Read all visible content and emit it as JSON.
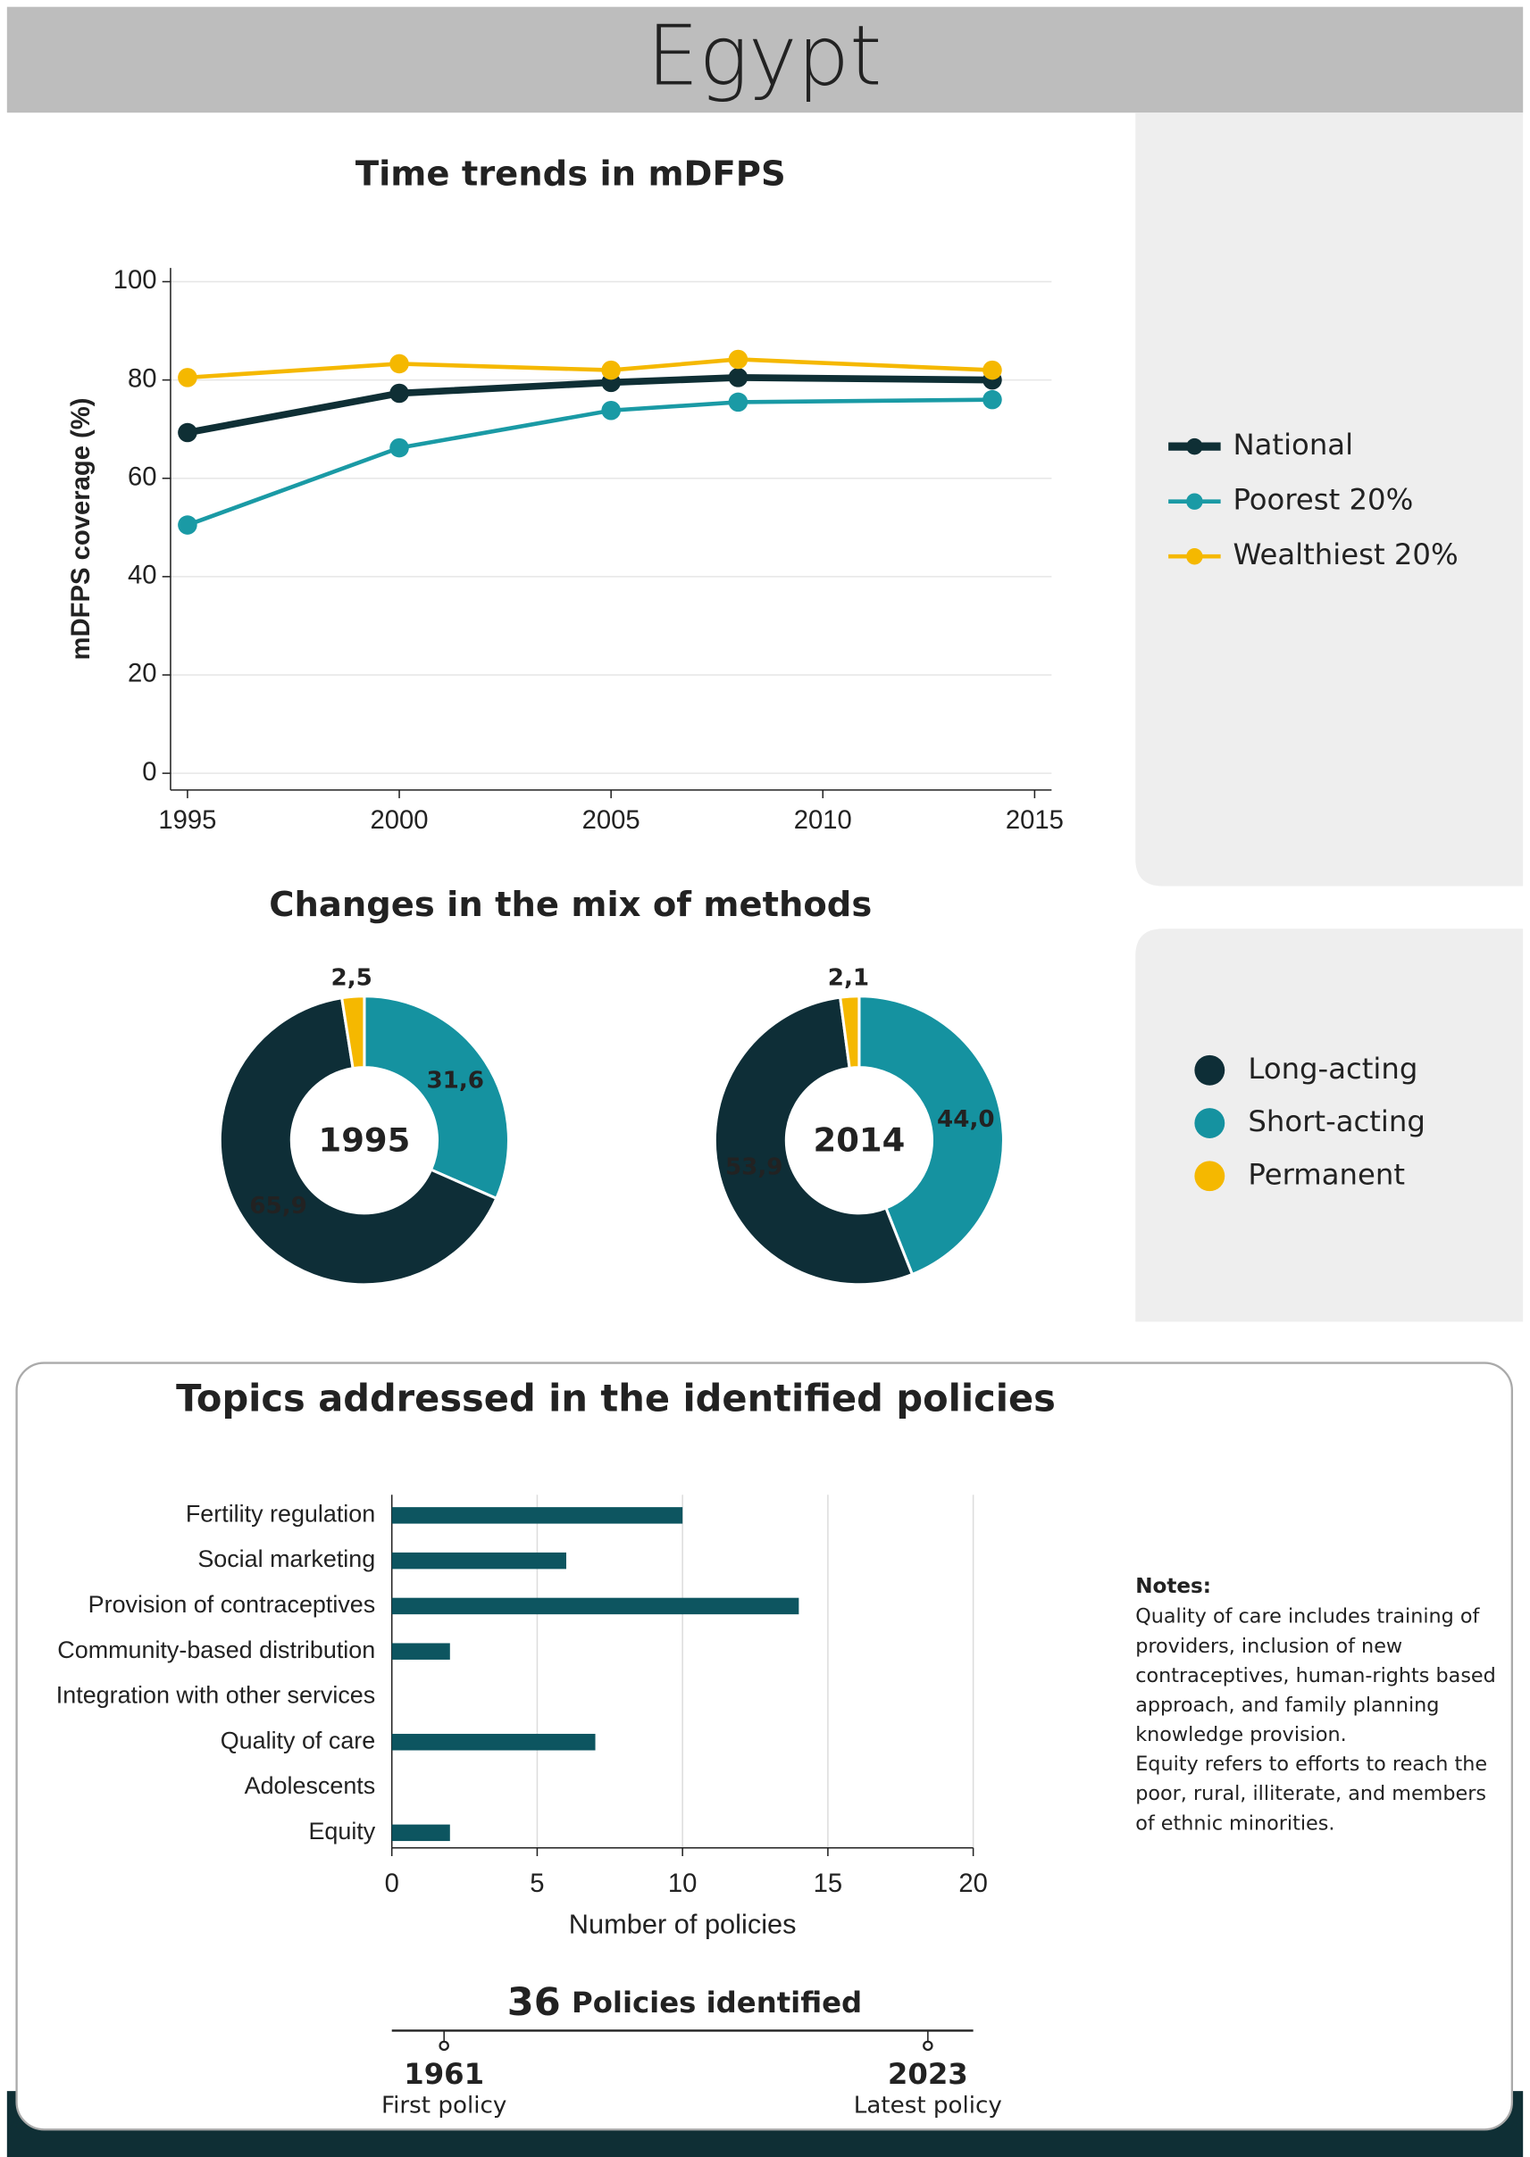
{
  "header": {
    "title": "Egypt"
  },
  "chart_data": [
    {
      "type": "line",
      "title": "Time trends in mDFPS",
      "y_label": "mDFPS coverage (%)",
      "x": [
        1995,
        2000,
        2005,
        2008,
        2014
      ],
      "xlim": [
        1994.6,
        2015.4
      ],
      "xticks": [
        1995,
        2000,
        2005,
        2010,
        2015
      ],
      "ylim": [
        -3.4,
        102.8
      ],
      "yticks": [
        0,
        20,
        40,
        60,
        80,
        100
      ],
      "grid": true,
      "legend": "right",
      "series": [
        {
          "name": "National",
          "color": "#0f2f35",
          "values": [
            69.3,
            77.3,
            79.5,
            80.5,
            80.0
          ]
        },
        {
          "name": "Poorest 20%",
          "color": "#1a9aa5",
          "values": [
            50.5,
            66.2,
            73.8,
            75.5,
            76.0
          ]
        },
        {
          "name": "Wealthiest 20%",
          "color": "#f5b800",
          "values": [
            80.5,
            83.3,
            82.0,
            84.2,
            82.0
          ]
        }
      ]
    },
    {
      "type": "pie",
      "title": "Changes in the mix of methods",
      "categories": [
        "Short-acting",
        "Long-acting",
        "Permanent"
      ],
      "colors": [
        "#1592a0",
        "#0e2e37",
        "#f5b800"
      ],
      "legend_order": [
        1,
        0,
        2
      ],
      "series": [
        {
          "name": "1995",
          "values": [
            31.6,
            65.9,
            2.5
          ],
          "value_labels": [
            "31,6",
            "65,9",
            "2,5"
          ]
        },
        {
          "name": "2014",
          "values": [
            44.0,
            53.9,
            2.1
          ],
          "value_labels": [
            "44,0",
            "53,9",
            "2,1"
          ]
        }
      ]
    },
    {
      "type": "bar",
      "orientation": "horizontal",
      "title": "Topics addressed in the identified policies",
      "x_label": "Number of policies",
      "categories": [
        "Fertility regulation",
        "Social marketing",
        "Provision of contraceptives",
        "Community-based distribution",
        "Integration with other services",
        "Quality of care",
        "Adolescents",
        "Equity"
      ],
      "values": [
        10,
        6,
        14,
        2,
        0,
        7,
        0,
        2
      ],
      "color": "#0d5560",
      "xlim": [
        0,
        20
      ],
      "xticks": [
        0,
        5,
        10,
        15,
        20
      ],
      "grid": true
    }
  ],
  "notes": {
    "title": "Notes:",
    "lines": [
      "Quality of care includes training of",
      "providers, inclusion of new",
      "contraceptives, human-rights based",
      "approach, and family planning",
      "knowledge provision.",
      "Equity refers to efforts to reach the",
      "poor, rural, illiterate, and members",
      "of ethnic minorities."
    ]
  },
  "policies": {
    "count": "36",
    "label": "Policies identified",
    "first": {
      "year": "1961",
      "label": "First policy"
    },
    "latest": {
      "year": "2023",
      "label": "Latest policy"
    }
  }
}
